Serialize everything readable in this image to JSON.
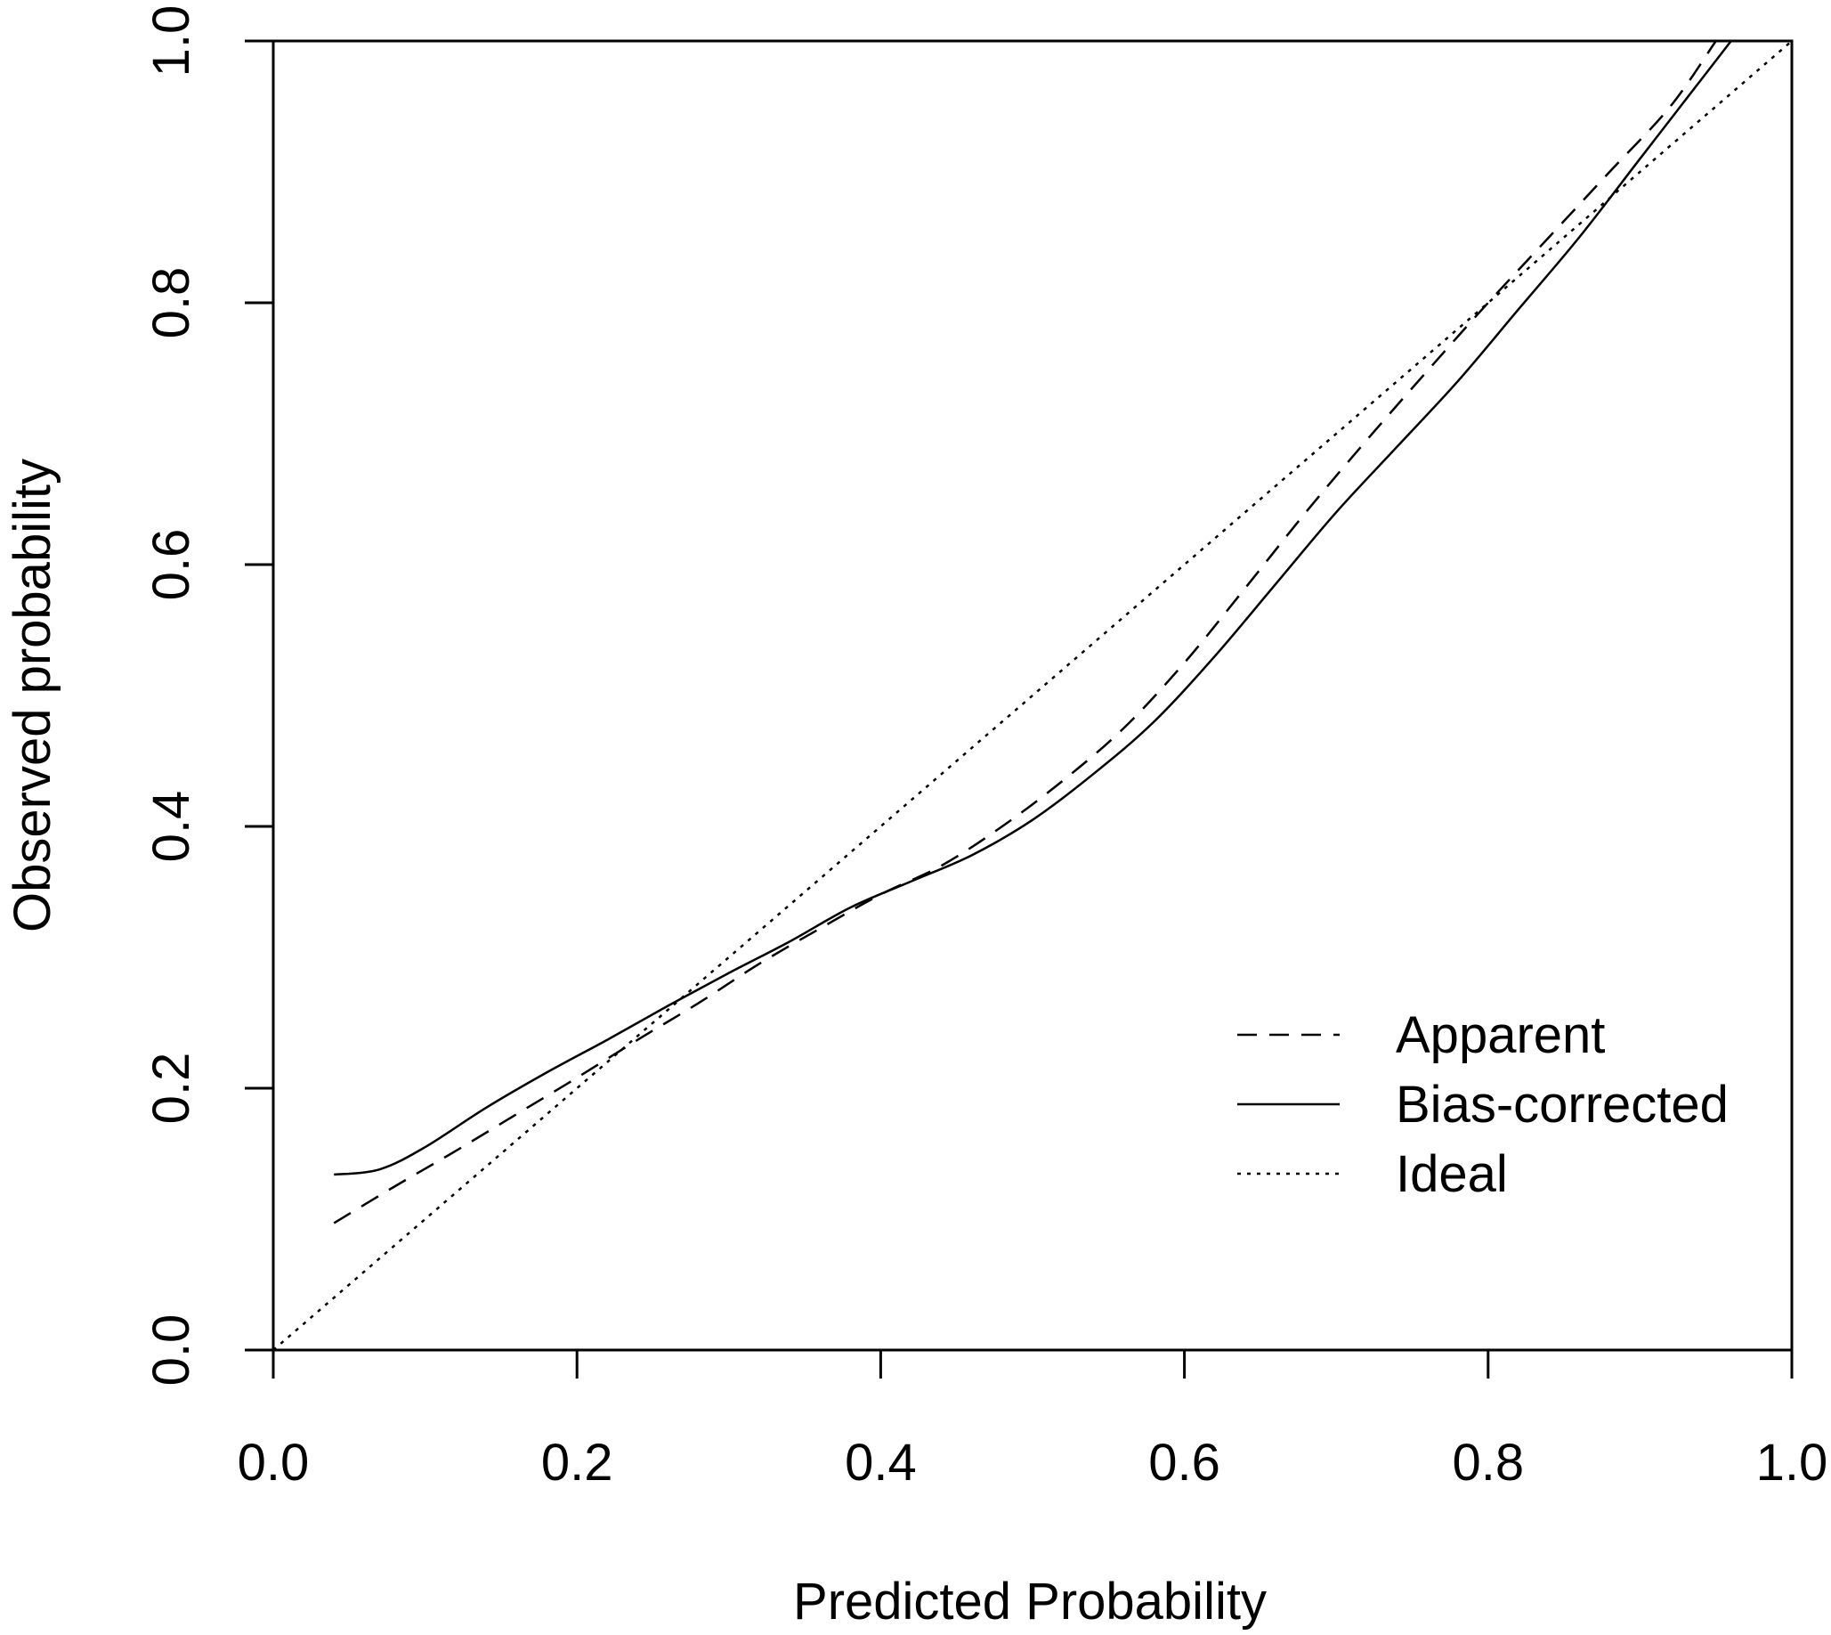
{
  "chart_data": {
    "type": "line",
    "title": "",
    "xlabel": "Predicted Probability",
    "ylabel": "Observed probability",
    "xlim": [
      0.0,
      1.0
    ],
    "ylim": [
      0.0,
      1.0
    ],
    "xticks": [
      "0.0",
      "0.2",
      "0.4",
      "0.6",
      "0.8",
      "1.0"
    ],
    "yticks": [
      "0.0",
      "0.2",
      "0.4",
      "0.6",
      "0.8",
      "1.0"
    ],
    "grid": false,
    "legend_position": "bottom-right",
    "series": [
      {
        "name": "Apparent",
        "style": "dashed",
        "x": [
          0.04,
          0.08,
          0.12,
          0.16,
          0.2,
          0.24,
          0.28,
          0.32,
          0.36,
          0.4,
          0.44,
          0.48,
          0.52,
          0.56,
          0.6,
          0.64,
          0.68,
          0.72,
          0.76,
          0.8,
          0.84,
          0.88,
          0.92,
          0.95
        ],
        "y": [
          0.097,
          0.125,
          0.152,
          0.18,
          0.208,
          0.237,
          0.265,
          0.295,
          0.322,
          0.348,
          0.37,
          0.4,
          0.435,
          0.475,
          0.525,
          0.582,
          0.64,
          0.695,
          0.748,
          0.8,
          0.85,
          0.9,
          0.95,
          1.0
        ]
      },
      {
        "name": "Bias-corrected",
        "style": "solid",
        "x": [
          0.04,
          0.07,
          0.1,
          0.14,
          0.18,
          0.22,
          0.26,
          0.3,
          0.34,
          0.38,
          0.42,
          0.46,
          0.5,
          0.54,
          0.58,
          0.62,
          0.66,
          0.7,
          0.74,
          0.78,
          0.82,
          0.86,
          0.9,
          0.94,
          0.96
        ],
        "y": [
          0.134,
          0.138,
          0.155,
          0.185,
          0.212,
          0.237,
          0.263,
          0.288,
          0.312,
          0.338,
          0.358,
          0.378,
          0.405,
          0.44,
          0.48,
          0.53,
          0.585,
          0.64,
          0.69,
          0.74,
          0.795,
          0.85,
          0.91,
          0.97,
          1.0
        ]
      },
      {
        "name": "Ideal",
        "style": "dotted",
        "x": [
          0.0,
          1.0
        ],
        "y": [
          0.0,
          1.0
        ]
      }
    ]
  }
}
